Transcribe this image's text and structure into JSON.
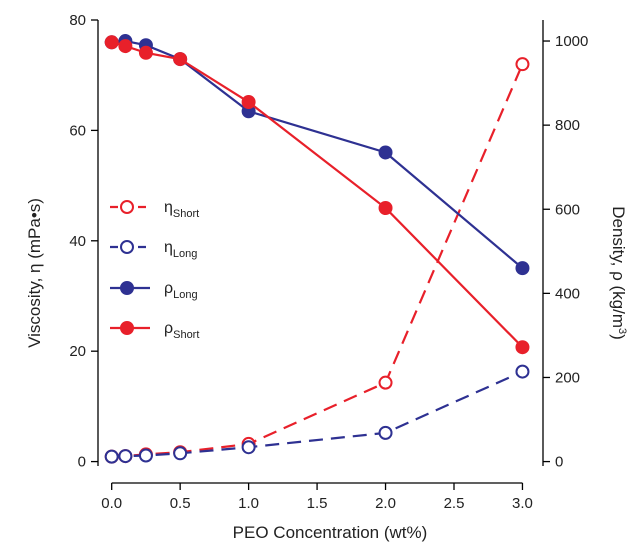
{
  "chart_data": {
    "type": "line",
    "title": "",
    "xlabel": "PEO Concentration (wt%)",
    "ylabel_left": "Viscosity, η (mPa•s)",
    "ylabel_right": {
      "text": "Density, ρ (kg/m",
      "sup": "3",
      "close": ")"
    },
    "x_ticks": [
      "0.0",
      "0.5",
      "1.0",
      "1.5",
      "2.0",
      "2.5",
      "3.0"
    ],
    "y_left_ticks": [
      "0",
      "20",
      "40",
      "60",
      "80"
    ],
    "y_right_ticks": [
      "0",
      "200",
      "400",
      "600",
      "800",
      "1000"
    ],
    "xlim": [
      -0.1,
      3.15
    ],
    "ylim_left": [
      -0.8,
      80
    ],
    "ylim_right": [
      -10.5,
      1050
    ],
    "grid": false,
    "legend_position": "left-middle",
    "series": [
      {
        "symbol": "η",
        "subscript": "Short",
        "axis": "left",
        "color": "#E8202A",
        "line_style": "dashed",
        "marker": "open-circle",
        "x": [
          0.0,
          0.1,
          0.25,
          0.5,
          1.0,
          2.0,
          3.0
        ],
        "y": [
          0.9,
          1.0,
          1.3,
          1.7,
          3.2,
          14.3,
          72.0
        ]
      },
      {
        "symbol": "η",
        "subscript": "Long",
        "axis": "left",
        "color": "#2E3192",
        "line_style": "dashed",
        "marker": "open-circle",
        "x": [
          0.0,
          0.1,
          0.25,
          0.5,
          1.0,
          2.0,
          3.0
        ],
        "y": [
          0.9,
          1.0,
          1.1,
          1.5,
          2.6,
          5.2,
          16.3
        ]
      },
      {
        "symbol": "ρ",
        "subscript": "Long",
        "axis": "right",
        "color": "#2E3192",
        "line_style": "solid",
        "marker": "filled-circle",
        "x": [
          0.0,
          0.1,
          0.25,
          0.5,
          1.0,
          2.0,
          3.0
        ],
        "y": [
          997,
          1000,
          990,
          957,
          833,
          735,
          460
        ]
      },
      {
        "symbol": "ρ",
        "subscript": "Short",
        "axis": "right",
        "color": "#E8202A",
        "line_style": "solid",
        "marker": "filled-circle",
        "x": [
          0.0,
          0.1,
          0.25,
          0.5,
          1.0,
          2.0,
          3.0
        ],
        "y": [
          997,
          988,
          972,
          957,
          855,
          603,
          272
        ]
      }
    ]
  }
}
